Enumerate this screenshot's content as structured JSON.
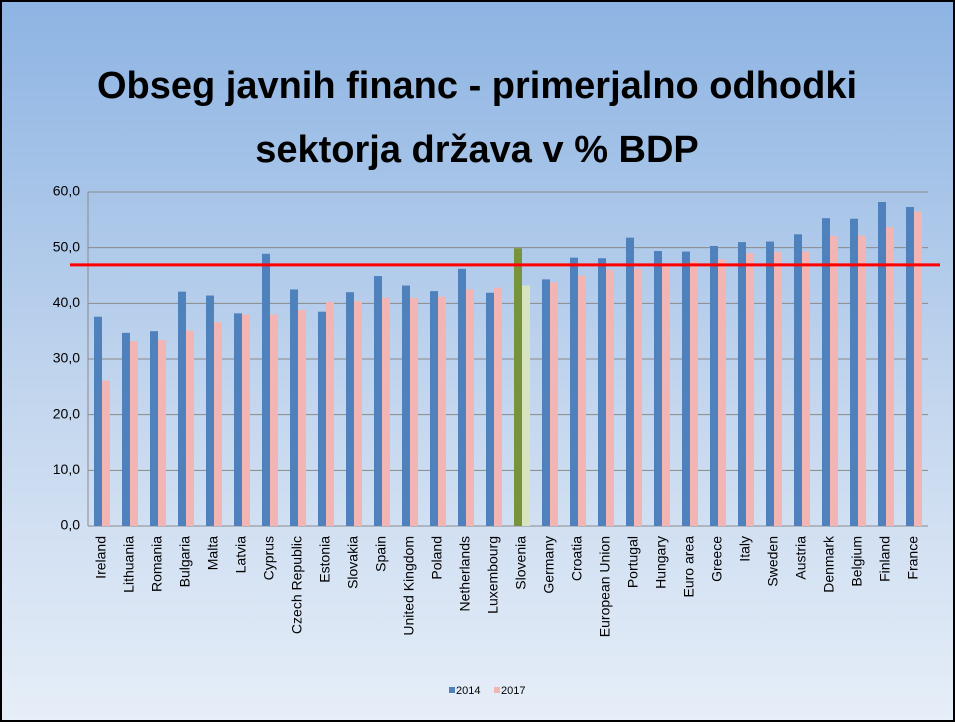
{
  "chart_data": {
    "type": "bar",
    "title": [
      "Obseg javnih financ  - primerjalno odhodki",
      "sektorja država  v % BDP"
    ],
    "categories": [
      "Ireland",
      "Lithuania",
      "Romania",
      "Bulgaria",
      "Malta",
      "Latvia",
      "Cyprus",
      "Czech Republic",
      "Estonia",
      "Slovakia",
      "Spain",
      "United Kingdom",
      "Poland",
      "Netherlands",
      "Luxembourg",
      "Slovenia",
      "Germany",
      "Croatia",
      "European Union",
      "Portugal",
      "Hungary",
      "Euro area",
      "Greece",
      "Italy",
      "Sweden",
      "Austria",
      "Denmark",
      "Belgium",
      "Finland",
      "France"
    ],
    "series": [
      {
        "name": "2014",
        "color": "#4f81bd",
        "values": [
          37.6,
          34.7,
          35.0,
          42.1,
          41.4,
          38.2,
          48.9,
          42.5,
          38.5,
          42.0,
          44.9,
          43.2,
          42.2,
          46.2,
          41.9,
          49.9,
          44.3,
          48.2,
          48.1,
          51.8,
          49.4,
          49.3,
          50.3,
          51.0,
          51.1,
          52.4,
          55.3,
          55.2,
          58.2,
          57.3
        ]
      },
      {
        "name": "2017",
        "color": "#f2b5b3",
        "values": [
          26.1,
          33.2,
          33.4,
          35.1,
          36.6,
          38.0,
          38.0,
          38.8,
          40.3,
          40.4,
          41.0,
          41.0,
          41.2,
          42.5,
          42.8,
          43.2,
          43.8,
          45.0,
          46.0,
          46.2,
          47.0,
          47.5,
          47.9,
          49.0,
          49.2,
          49.3,
          52.1,
          52.2,
          53.7,
          56.5
        ]
      }
    ],
    "highlight": {
      "category": "Slovenia",
      "colors": [
        "#77933c",
        "#d7e4bd"
      ]
    },
    "reference_line": {
      "value": 46.9,
      "color": "#ff0000"
    },
    "ylim": [
      0,
      60
    ],
    "yticks": [
      {
        "value": 0,
        "label": "0,0"
      },
      {
        "value": 10,
        "label": "10,0"
      },
      {
        "value": 20,
        "label": "20,0"
      },
      {
        "value": 30,
        "label": "30,0"
      },
      {
        "value": 40,
        "label": "40,0"
      },
      {
        "value": 50,
        "label": "50,0"
      },
      {
        "value": 60,
        "label": "60,0"
      }
    ],
    "grid": true,
    "legend": "bottom"
  }
}
